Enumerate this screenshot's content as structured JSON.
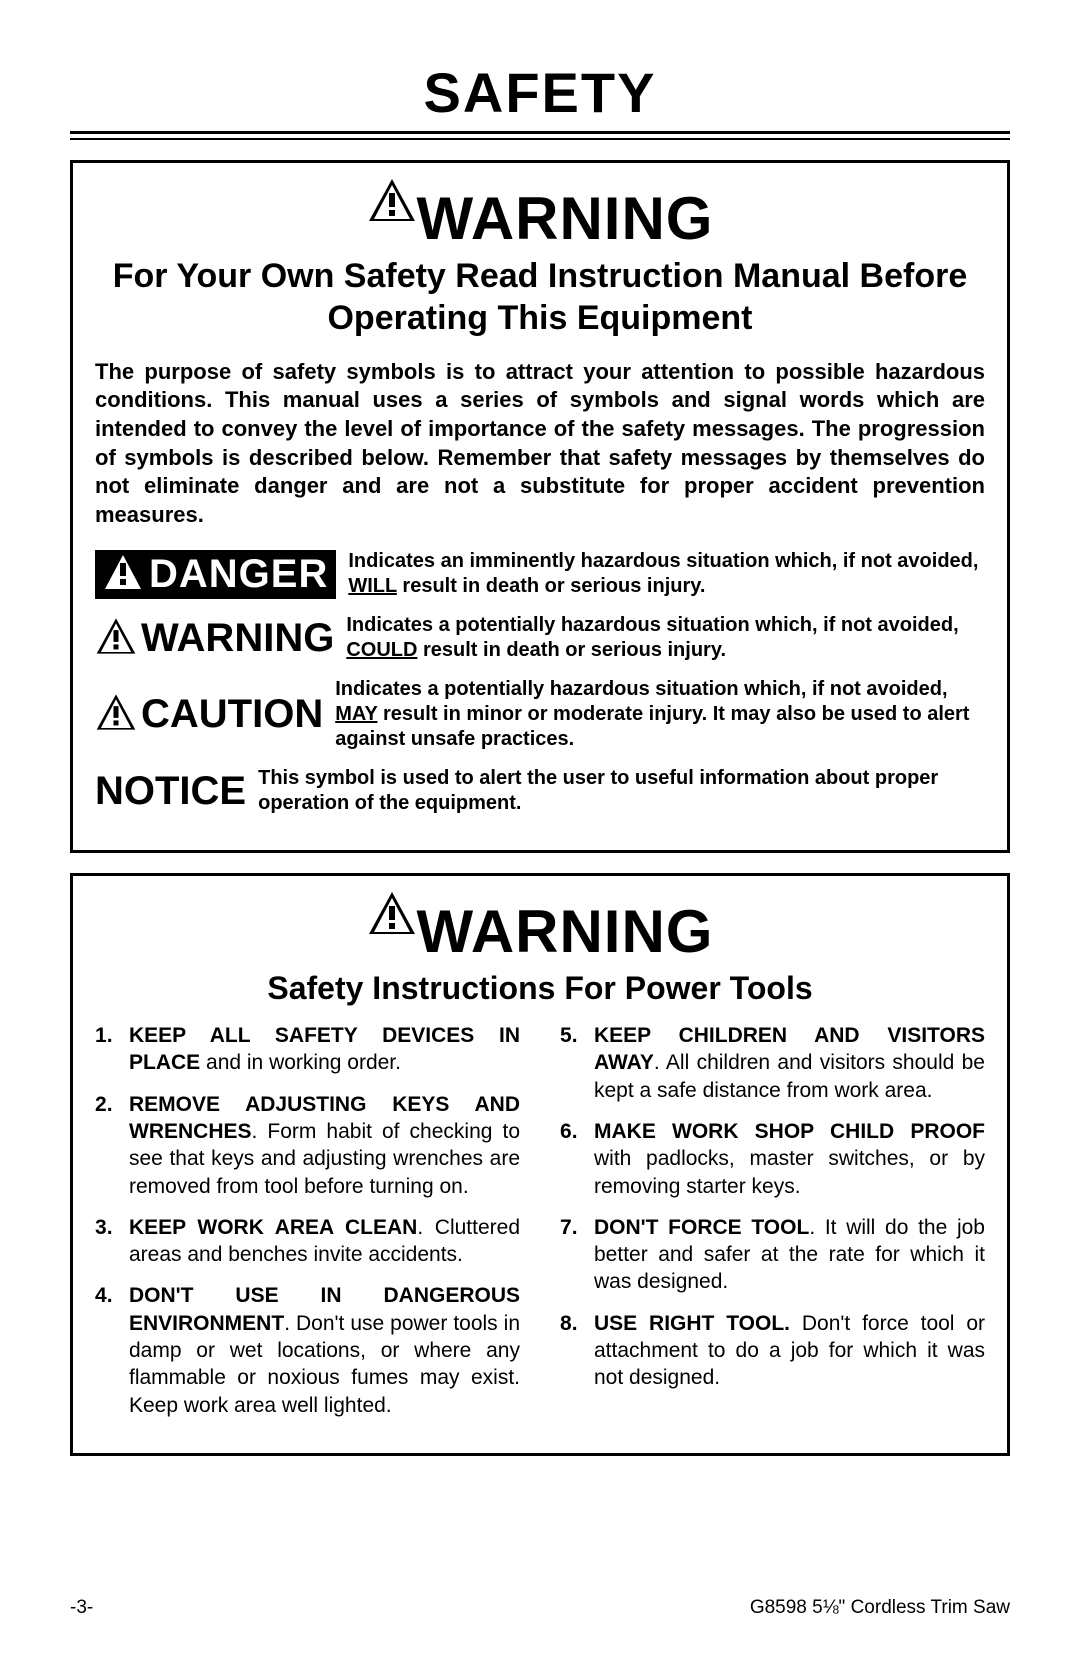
{
  "page": {
    "title": "SAFETY",
    "footer_left": "-3-",
    "footer_right": "G8598 5⅛\" Cordless Trim Saw"
  },
  "box1": {
    "signal_word": "WARNING",
    "sub_heading": "For Your Own Safety Read Instruction Manual Before Operating This Equipment",
    "intro": "The purpose of safety symbols is to attract your attention to possible hazardous conditions. This manual uses a series of symbols and signal words which are intended to convey the level of importance of the safety messages. The progression of symbols is described below. Remember that safety messages by themselves do not eliminate danger and are not a substitute for proper accident prevention measures.",
    "defs": {
      "danger": {
        "label": "DANGER",
        "text_pre": "Indicates an imminently hazardous situation which, if not avoided, ",
        "text_ul": "WILL",
        "text_post": " result in death or serious injury."
      },
      "warning": {
        "label": "WARNING",
        "text_pre": "Indicates a potentially hazardous situation which, if not avoided, ",
        "text_ul": "COULD",
        "text_post": " result in death or serious injury."
      },
      "caution": {
        "label": "CAUTION",
        "text_pre": "Indicates a potentially hazardous situation which, if not avoided, ",
        "text_ul": "MAY",
        "text_post": " result in minor or moderate injury. It may also be used to alert against unsafe practices."
      },
      "notice": {
        "label": "NOTICE",
        "text": "This symbol is used to alert the user to useful information about proper operation of the equipment."
      }
    }
  },
  "box2": {
    "signal_word": "WARNING",
    "sub_heading": "Safety Instructions For Power Tools",
    "rules": [
      {
        "lead": "KEEP ALL SAFETY DEVICES IN PLACE",
        "rest": " and in working order."
      },
      {
        "lead": "REMOVE ADJUSTING KEYS AND WRENCHES",
        "rest": ". Form habit of checking to see that keys and adjusting wrenches are removed from tool before turning on."
      },
      {
        "lead": "KEEP WORK AREA CLEAN",
        "rest": ". Cluttered areas and benches invite accidents."
      },
      {
        "lead": "DON'T USE IN DANGEROUS ENVIRONMENT",
        "rest": ". Don't use power tools in damp or wet locations, or where any flammable or noxious fumes may exist. Keep work area well lighted."
      },
      {
        "lead": "KEEP CHILDREN AND VISITORS AWAY",
        "rest": ". All children and visitors should be kept a safe distance from work area."
      },
      {
        "lead": "MAKE WORK SHOP CHILD PROOF",
        "rest": " with padlocks, master switches, or by removing starter keys."
      },
      {
        "lead": "DON'T FORCE TOOL",
        "rest": ". It will do the job better and safer at the rate for which it was designed."
      },
      {
        "lead": "USE RIGHT TOOL.",
        "rest": " Don't force tool or attachment to do a job for which it was not designed."
      }
    ]
  },
  "style": {
    "colors": {
      "text": "#000000",
      "bg": "#ffffff",
      "danger_bg": "#000000",
      "danger_fg": "#ffffff"
    }
  }
}
